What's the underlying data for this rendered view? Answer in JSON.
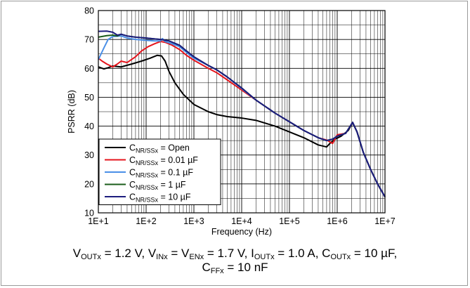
{
  "chart_data": {
    "type": "line",
    "xscale": "log",
    "xlim": [
      10,
      10000000
    ],
    "ylim": [
      10,
      80
    ],
    "x_ticks": [
      "1E+1",
      "1E+2",
      "1E+3",
      "1E+4",
      "1E+5",
      "1E+6",
      "1E+7"
    ],
    "y_ticks": [
      "10",
      "20",
      "30",
      "40",
      "50",
      "60",
      "70",
      "80"
    ],
    "xlabel": "Frequency (Hz)",
    "ylabel": "PSRR (dB)",
    "grid": true,
    "legend_placement": "bottom-left",
    "series": [
      {
        "name_main": "C",
        "name_sub": "NR/SSx",
        "name_value": " = Open",
        "color": "#000000",
        "points": [
          [
            10,
            60.5
          ],
          [
            13,
            59.8
          ],
          [
            16,
            60.2
          ],
          [
            20,
            60.8
          ],
          [
            30,
            60.5
          ],
          [
            50,
            61.5
          ],
          [
            80,
            62.5
          ],
          [
            120,
            63.5
          ],
          [
            170,
            64.5
          ],
          [
            210,
            64.3
          ],
          [
            250,
            62.5
          ],
          [
            300,
            59
          ],
          [
            400,
            55
          ],
          [
            600,
            51
          ],
          [
            1000,
            47.5
          ],
          [
            2000,
            45
          ],
          [
            3000,
            44
          ],
          [
            5000,
            43.3
          ],
          [
            10000,
            42.8
          ],
          [
            20000,
            42
          ],
          [
            50000,
            40
          ],
          [
            100000,
            38
          ],
          [
            200000,
            36
          ],
          [
            400000,
            33.5
          ],
          [
            600000,
            32.8
          ],
          [
            700000,
            34
          ],
          [
            900000,
            35.5
          ],
          [
            1200000,
            36.5
          ],
          [
            1700000,
            38.5
          ],
          [
            2100000,
            41.2
          ],
          [
            2600000,
            38
          ],
          [
            3500000,
            31
          ],
          [
            5000000,
            25
          ],
          [
            7000000,
            20
          ],
          [
            10000000,
            15.5
          ]
        ]
      },
      {
        "name_main": "C",
        "name_sub": "NR/SSx",
        "name_value": " = 0.01 µF",
        "color": "#e5141c",
        "points": [
          [
            10,
            63.5
          ],
          [
            12,
            62.5
          ],
          [
            15,
            61.5
          ],
          [
            20,
            60.5
          ],
          [
            25,
            61.5
          ],
          [
            30,
            62.5
          ],
          [
            40,
            62
          ],
          [
            60,
            64
          ],
          [
            80,
            66
          ],
          [
            110,
            67.5
          ],
          [
            150,
            68.5
          ],
          [
            200,
            69.3
          ],
          [
            250,
            69
          ],
          [
            350,
            68
          ],
          [
            500,
            66.5
          ],
          [
            700,
            64.5
          ],
          [
            1000,
            62.8
          ],
          [
            2000,
            60
          ],
          [
            3000,
            58.5
          ],
          [
            5000,
            56
          ],
          [
            10000,
            52.5
          ],
          [
            20000,
            49
          ],
          [
            50000,
            44.5
          ],
          [
            100000,
            41.5
          ],
          [
            200000,
            38.5
          ],
          [
            400000,
            36
          ],
          [
            600000,
            35.2
          ],
          [
            800000,
            34
          ],
          [
            1000000,
            37
          ],
          [
            1500000,
            37.5
          ],
          [
            2100000,
            41.3
          ],
          [
            2600000,
            38
          ],
          [
            3500000,
            31
          ],
          [
            5000000,
            25
          ],
          [
            7000000,
            20
          ],
          [
            10000000,
            15.5
          ]
        ]
      },
      {
        "name_main": "C",
        "name_sub": "NR/SSx",
        "name_value": " = 0.1 µF",
        "color": "#4a8fe7",
        "points": [
          [
            10,
            63
          ],
          [
            13,
            67
          ],
          [
            16,
            70
          ],
          [
            20,
            71
          ],
          [
            30,
            71.2
          ],
          [
            40,
            70.5
          ],
          [
            60,
            70
          ],
          [
            100,
            69.7
          ],
          [
            150,
            69.5
          ],
          [
            200,
            69.5
          ],
          [
            220,
            70.3
          ],
          [
            250,
            69.3
          ],
          [
            350,
            68.5
          ],
          [
            500,
            67.5
          ],
          [
            700,
            65.5
          ],
          [
            1000,
            63.5
          ],
          [
            2000,
            61
          ],
          [
            3000,
            59.5
          ],
          [
            5000,
            57
          ],
          [
            10000,
            53
          ],
          [
            20000,
            49
          ],
          [
            50000,
            44.5
          ],
          [
            100000,
            41.5
          ],
          [
            200000,
            38.5
          ],
          [
            400000,
            36
          ],
          [
            600000,
            35
          ],
          [
            800000,
            35.5
          ],
          [
            1000000,
            36.5
          ],
          [
            1500000,
            37.5
          ],
          [
            2100000,
            41.3
          ],
          [
            2600000,
            38
          ],
          [
            3500000,
            31
          ],
          [
            5000000,
            25
          ],
          [
            7000000,
            20
          ],
          [
            10000000,
            15.5
          ]
        ]
      },
      {
        "name_main": "C",
        "name_sub": "NR/SSx",
        "name_value": " = 1 µF",
        "color": "#1a5c1a",
        "points": [
          [
            10,
            70.8
          ],
          [
            15,
            71.3
          ],
          [
            20,
            71.5
          ],
          [
            25,
            71.2
          ],
          [
            30,
            71.8
          ],
          [
            40,
            71.2
          ],
          [
            60,
            70.8
          ],
          [
            100,
            70.5
          ],
          [
            150,
            70.2
          ],
          [
            200,
            70
          ],
          [
            300,
            69.5
          ],
          [
            500,
            68
          ],
          [
            700,
            66
          ],
          [
            1000,
            64
          ],
          [
            2000,
            61
          ],
          [
            3000,
            59.5
          ],
          [
            5000,
            57
          ],
          [
            10000,
            53.2
          ],
          [
            20000,
            49
          ],
          [
            50000,
            44.5
          ],
          [
            100000,
            41.5
          ],
          [
            200000,
            38.5
          ],
          [
            400000,
            36
          ],
          [
            600000,
            35
          ],
          [
            800000,
            35.5
          ],
          [
            1000000,
            36.5
          ],
          [
            1500000,
            37.5
          ],
          [
            2100000,
            41.3
          ],
          [
            2600000,
            38
          ],
          [
            3500000,
            31
          ],
          [
            5000000,
            25
          ],
          [
            7000000,
            20
          ],
          [
            10000000,
            15.5
          ]
        ]
      },
      {
        "name_main": "C",
        "name_sub": "NR/SSx",
        "name_value": " = 10 µF",
        "color": "#1c1c7e",
        "points": [
          [
            10,
            72.8
          ],
          [
            15,
            72.9
          ],
          [
            20,
            72.5
          ],
          [
            25,
            71.5
          ],
          [
            30,
            71.8
          ],
          [
            40,
            71.2
          ],
          [
            60,
            70.8
          ],
          [
            100,
            70.5
          ],
          [
            150,
            70.2
          ],
          [
            200,
            70
          ],
          [
            300,
            69.5
          ],
          [
            500,
            68
          ],
          [
            700,
            66
          ],
          [
            1000,
            64
          ],
          [
            2000,
            61
          ],
          [
            3000,
            59.5
          ],
          [
            5000,
            57
          ],
          [
            10000,
            53.2
          ],
          [
            20000,
            49
          ],
          [
            50000,
            44.5
          ],
          [
            100000,
            41.5
          ],
          [
            200000,
            38.5
          ],
          [
            400000,
            36
          ],
          [
            600000,
            35
          ],
          [
            800000,
            35.5
          ],
          [
            1000000,
            36.5
          ],
          [
            1500000,
            37.5
          ],
          [
            2100000,
            41.3
          ],
          [
            2600000,
            38
          ],
          [
            3500000,
            31
          ],
          [
            5000000,
            25
          ],
          [
            7000000,
            20
          ],
          [
            10000000,
            15.5
          ]
        ]
      }
    ]
  },
  "caption": {
    "line1": [
      {
        "t": "V"
      },
      {
        "sub": "OUTx"
      },
      {
        "t": " = 1.2 V, V"
      },
      {
        "sub": "INx"
      },
      {
        "t": " = V"
      },
      {
        "sub": "ENx"
      },
      {
        "t": " = 1.7 V, I"
      },
      {
        "sub": "OUTx"
      },
      {
        "t": " = 1.0 A, C"
      },
      {
        "sub": "OUTx"
      },
      {
        "t": " = 10 µF,"
      }
    ],
    "line2": [
      {
        "t": "C"
      },
      {
        "sub": "FFx"
      },
      {
        "t": " = 10 nF"
      }
    ]
  }
}
